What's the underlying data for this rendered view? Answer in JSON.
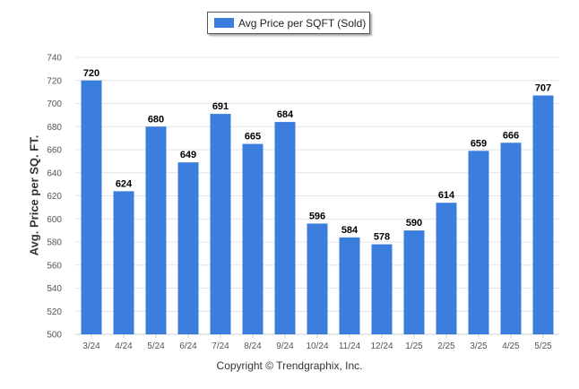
{
  "chart_data": {
    "type": "bar",
    "categories": [
      "3/24",
      "4/24",
      "5/24",
      "6/24",
      "7/24",
      "8/24",
      "9/24",
      "10/24",
      "11/24",
      "12/24",
      "1/25",
      "2/25",
      "3/25",
      "4/25",
      "5/25"
    ],
    "series": [
      {
        "name": "Avg Price per SQFT (Sold)",
        "values": [
          720,
          624,
          680,
          649,
          691,
          665,
          684,
          596,
          584,
          578,
          590,
          614,
          659,
          666,
          707
        ]
      }
    ],
    "ylabel": "Avg. Price per SQ. FT.",
    "ylim": [
      500,
      740
    ],
    "yticks": [
      500,
      520,
      540,
      560,
      580,
      600,
      620,
      640,
      660,
      680,
      700,
      720,
      740
    ],
    "grid": true,
    "legend": "top-center",
    "color": "#3b7ddd"
  },
  "footer": "Copyright © Trendgraphix, Inc."
}
